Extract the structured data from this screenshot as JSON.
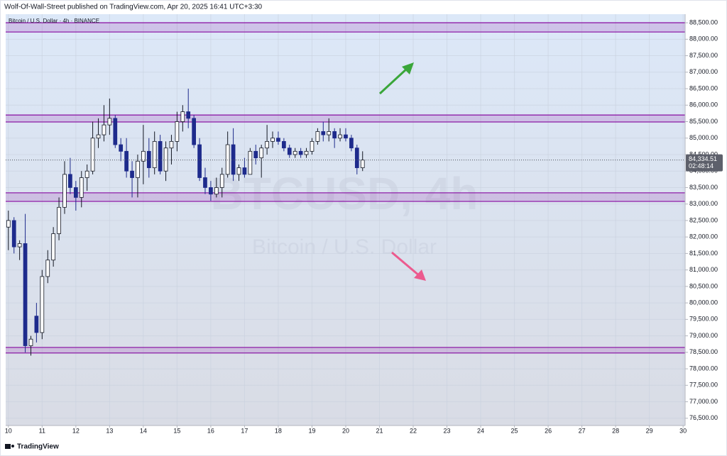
{
  "header": {
    "published": "Wolf-Of-Wall-Street published on TradingView.com, Apr 20, 2025 16:41 UTC+3:30"
  },
  "chart_data": {
    "type": "candlestick",
    "title": "Bitcoin / U.S. Dollar · 4h · BINANCE",
    "watermark": "BTCUSD, 4h",
    "watermark_subtitle": "Bitcoin / U.S. Dollar",
    "x": [
      10,
      10.167,
      10.333,
      10.5,
      10.667,
      10.833,
      11,
      11.167,
      11.333,
      11.5,
      11.667,
      11.833,
      12,
      12.167,
      12.333,
      12.5,
      12.667,
      12.833,
      13,
      13.167,
      13.333,
      13.5,
      13.667,
      13.833,
      14,
      14.167,
      14.333,
      14.5,
      14.667,
      14.833,
      15,
      15.167,
      15.333,
      15.5,
      15.667,
      15.833,
      16,
      16.167,
      16.333,
      16.5,
      16.667,
      16.833,
      17,
      17.167,
      17.333,
      17.5,
      17.667,
      17.833,
      18,
      18.167,
      18.333,
      18.5,
      18.667,
      18.833,
      19,
      19.167,
      19.333,
      19.5,
      19.667,
      19.833,
      20,
      20.167,
      20.333,
      20.5
    ],
    "open": [
      82300,
      82500,
      81700,
      81800,
      78700,
      79600,
      79100,
      80800,
      81300,
      82100,
      82900,
      83900,
      83500,
      83200,
      83800,
      84000,
      85000,
      85100,
      85400,
      85600,
      84800,
      84600,
      84000,
      83800,
      84300,
      84600,
      84100,
      84900,
      84000,
      84700,
      84900,
      85500,
      85800,
      85600,
      84800,
      83800,
      83500,
      83300,
      83500,
      83900,
      84800,
      83900,
      84100,
      83900,
      84600,
      84400,
      84700,
      84900,
      85000,
      84900,
      84700,
      84500,
      84600,
      84500,
      84600,
      84900,
      85200,
      85100,
      85200,
      85000,
      85100,
      85000,
      84700,
      84100
    ],
    "high": [
      82800,
      82600,
      81900,
      82700,
      79000,
      80000,
      81000,
      81600,
      82300,
      83200,
      84300,
      84400,
      83700,
      84000,
      84200,
      85500,
      85600,
      86000,
      86200,
      85700,
      85000,
      85000,
      84300,
      84500,
      85400,
      85000,
      85200,
      85100,
      84900,
      85100,
      85800,
      86000,
      86500,
      85700,
      85000,
      84100,
      83700,
      83800,
      84100,
      85200,
      85300,
      84200,
      84400,
      84700,
      84800,
      84800,
      85400,
      85200,
      85200,
      85000,
      84800,
      84700,
      84700,
      84700,
      85000,
      85300,
      85500,
      85600,
      85300,
      85300,
      85300,
      85100,
      84800,
      84600
    ],
    "low": [
      81600,
      81500,
      81300,
      78500,
      78400,
      78800,
      78900,
      80600,
      81100,
      81900,
      82700,
      83300,
      82800,
      82900,
      83400,
      83900,
      84700,
      84900,
      85100,
      84700,
      84300,
      83800,
      83200,
      83200,
      83600,
      83800,
      83900,
      83900,
      83700,
      84200,
      84600,
      85200,
      85300,
      84700,
      83700,
      83300,
      83100,
      83200,
      83200,
      83800,
      83700,
      83700,
      83800,
      83900,
      84200,
      83800,
      84500,
      84700,
      84800,
      84600,
      84400,
      84400,
      84400,
      84400,
      84500,
      84800,
      84900,
      84900,
      84700,
      84900,
      84900,
      84600,
      83900,
      84000
    ],
    "close": [
      82500,
      81700,
      81800,
      78700,
      78900,
      79100,
      80800,
      81300,
      82100,
      82900,
      83900,
      83500,
      83200,
      83800,
      84000,
      85000,
      85100,
      85400,
      85600,
      84800,
      84600,
      84000,
      83800,
      84300,
      84600,
      84100,
      84900,
      84000,
      84700,
      84900,
      85500,
      85800,
      85600,
      84800,
      83800,
      83500,
      83300,
      83500,
      83900,
      84800,
      83900,
      84100,
      83900,
      84600,
      84400,
      84700,
      84900,
      85000,
      84900,
      84700,
      84500,
      84600,
      84500,
      84600,
      84900,
      85200,
      85100,
      85200,
      85000,
      85100,
      85000,
      84700,
      84100,
      84334.51
    ],
    "up_color": "#ffffff",
    "down_color": "#1e2b8c",
    "wick_color": "#131722",
    "zones": [
      {
        "low": 88220,
        "high": 88500
      },
      {
        "low": 85490,
        "high": 85700
      },
      {
        "low": 83080,
        "high": 83340
      },
      {
        "low": 78480,
        "high": 78650
      }
    ],
    "zone_color": "#8e1ea8",
    "last_price": {
      "value": 84334.51,
      "label": "84,334.51"
    },
    "countdown": "02:48:14",
    "xlim": [
      9.92,
      30.06
    ],
    "xticks": [
      10,
      11,
      12,
      13,
      14,
      15,
      16,
      17,
      18,
      19,
      20,
      21,
      22,
      23,
      24,
      25,
      26,
      27,
      28,
      29,
      30
    ],
    "ylim": [
      76280,
      88760
    ],
    "yticks": [
      {
        "value": 76500,
        "label": "76,500.00"
      },
      {
        "value": 77000,
        "label": "77,000.00"
      },
      {
        "value": 77500,
        "label": "77,500.00"
      },
      {
        "value": 78000,
        "label": "78,000.00"
      },
      {
        "value": 78500,
        "label": "78,500.00"
      },
      {
        "value": 79000,
        "label": "79,000.00"
      },
      {
        "value": 79500,
        "label": "79,500.00"
      },
      {
        "value": 80000,
        "label": "80,000.00"
      },
      {
        "value": 80500,
        "label": "80,500.00"
      },
      {
        "value": 81000,
        "label": "81,000.00"
      },
      {
        "value": 81500,
        "label": "81,500.00"
      },
      {
        "value": 82000,
        "label": "82,000.00"
      },
      {
        "value": 82500,
        "label": "82,500.00"
      },
      {
        "value": 83000,
        "label": "83,000.00"
      },
      {
        "value": 83500,
        "label": "83,500.00"
      },
      {
        "value": 84000,
        "label": "84,000.00"
      },
      {
        "value": 84500,
        "label": "84,500.00"
      },
      {
        "value": 85000,
        "label": "85,000.00"
      },
      {
        "value": 85500,
        "label": "85,500.00"
      },
      {
        "value": 86000,
        "label": "86,000.00"
      },
      {
        "value": 86500,
        "label": "86,500.00"
      },
      {
        "value": 87000,
        "label": "87,000.00"
      },
      {
        "value": 87500,
        "label": "87,500.00"
      },
      {
        "value": 88000,
        "label": "88,000.00"
      },
      {
        "value": 88500,
        "label": "88,500.00"
      }
    ],
    "grid": true
  },
  "footer": {
    "brand": "TradingView"
  }
}
